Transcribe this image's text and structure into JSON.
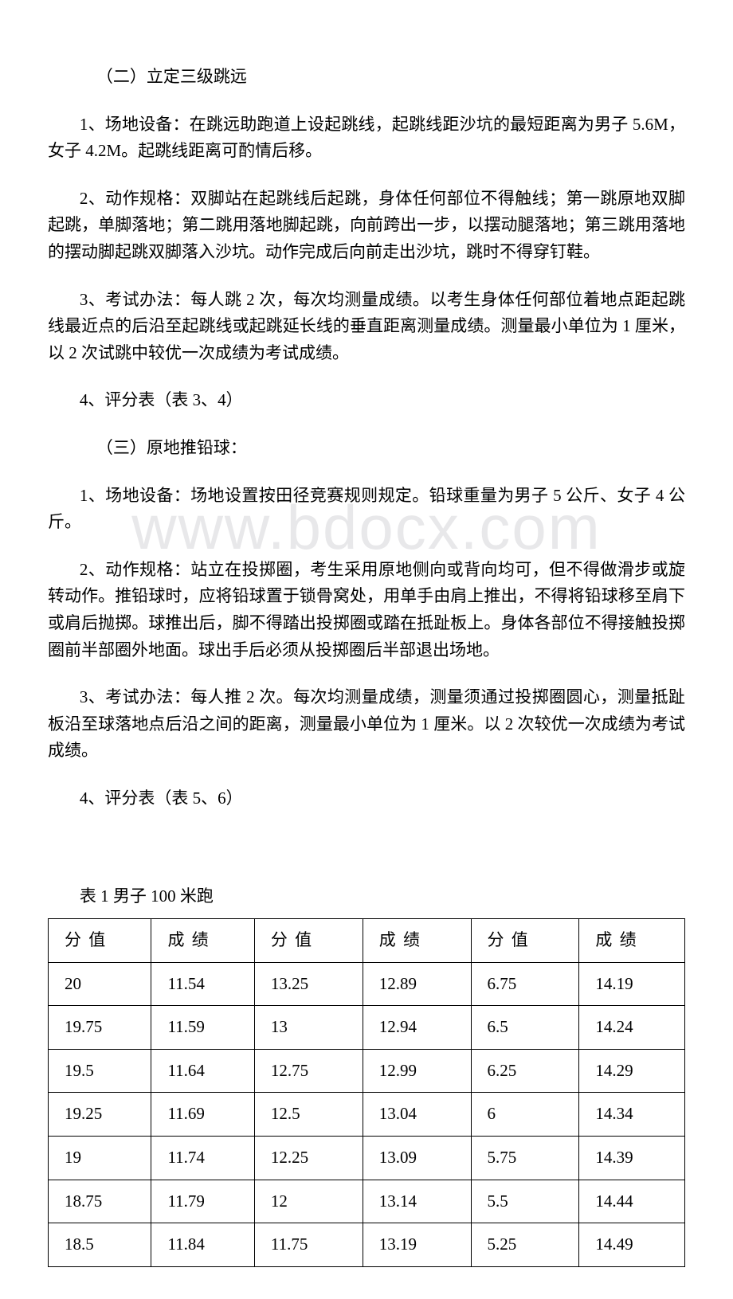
{
  "section2": {
    "title": "（二）立定三级跳远",
    "para1": "1、场地设备：在跳远助跑道上设起跳线，起跳线距沙坑的最短距离为男子 5.6M，女子 4.2M。起跳线距离可酌情后移。",
    "para2": "2、动作规格：双脚站在起跳线后起跳，身体任何部位不得触线；第一跳原地双脚起跳，单脚落地；第二跳用落地脚起跳，向前跨出一步，以摆动腿落地；第三跳用落地的摆动脚起跳双脚落入沙坑。动作完成后向前走出沙坑，跳时不得穿钉鞋。",
    "para3": "3、考试办法：每人跳 2 次，每次均测量成绩。以考生身体任何部位着地点距起跳线最近点的后沿至起跳线或起跳延长线的垂直距离测量成绩。测量最小单位为 1 厘米，以 2 次试跳中较优一次成绩为考试成绩。",
    "para4": "4、评分表（表 3、4）"
  },
  "section3": {
    "title": "（三）原地推铅球：",
    "para1": "1、场地设备：场地设置按田径竞赛规则规定。铅球重量为男子 5 公斤、女子 4 公斤。",
    "para2": "2、动作规格：站立在投掷圈，考生采用原地侧向或背向均可，但不得做滑步或旋转动作。推铅球时，应将铅球置于锁骨窝处，用单手由肩上推出，不得将铅球移至肩下或肩后抛掷。球推出后，脚不得踏出投掷圈或踏在抵趾板上。身体各部位不得接触投掷圈前半部圈外地面。球出手后必须从投掷圈后半部退出场地。",
    "para3": "3、考试办法：每人推 2 次。每次均测量成绩，测量须通过投掷圈圆心，测量抵趾板沿至球落地点后沿之间的距离，测量最小单位为 1 厘米。以 2 次较优一次成绩为考试成绩。",
    "para4": "4、评分表（表 5、6）"
  },
  "watermark": "www.bdocx.com",
  "table": {
    "title": "表 1 男子 100 米跑",
    "headers": [
      "分 值",
      "成 绩",
      "分 值",
      "成 绩",
      "分 值",
      "成 绩"
    ],
    "rows": [
      [
        "20",
        "11.54",
        "13.25",
        "12.89",
        "6.75",
        "14.19"
      ],
      [
        "19.75",
        "11.59",
        "13",
        "12.94",
        "6.5",
        "14.24"
      ],
      [
        "19.5",
        "11.64",
        "12.75",
        "12.99",
        "6.25",
        "14.29"
      ],
      [
        "19.25",
        "11.69",
        "12.5",
        "13.04",
        "6",
        "14.34"
      ],
      [
        "19",
        "11.74",
        "12.25",
        "13.09",
        "5.75",
        "14.39"
      ],
      [
        "18.75",
        "11.79",
        "12",
        "13.14",
        "5.5",
        "14.44"
      ],
      [
        "18.5",
        "11.84",
        "11.75",
        "13.19",
        "5.25",
        "14.49"
      ]
    ],
    "col_widths": [
      "16.2%",
      "16.2%",
      "17%",
      "17%",
      "17%",
      "16.6%"
    ]
  }
}
